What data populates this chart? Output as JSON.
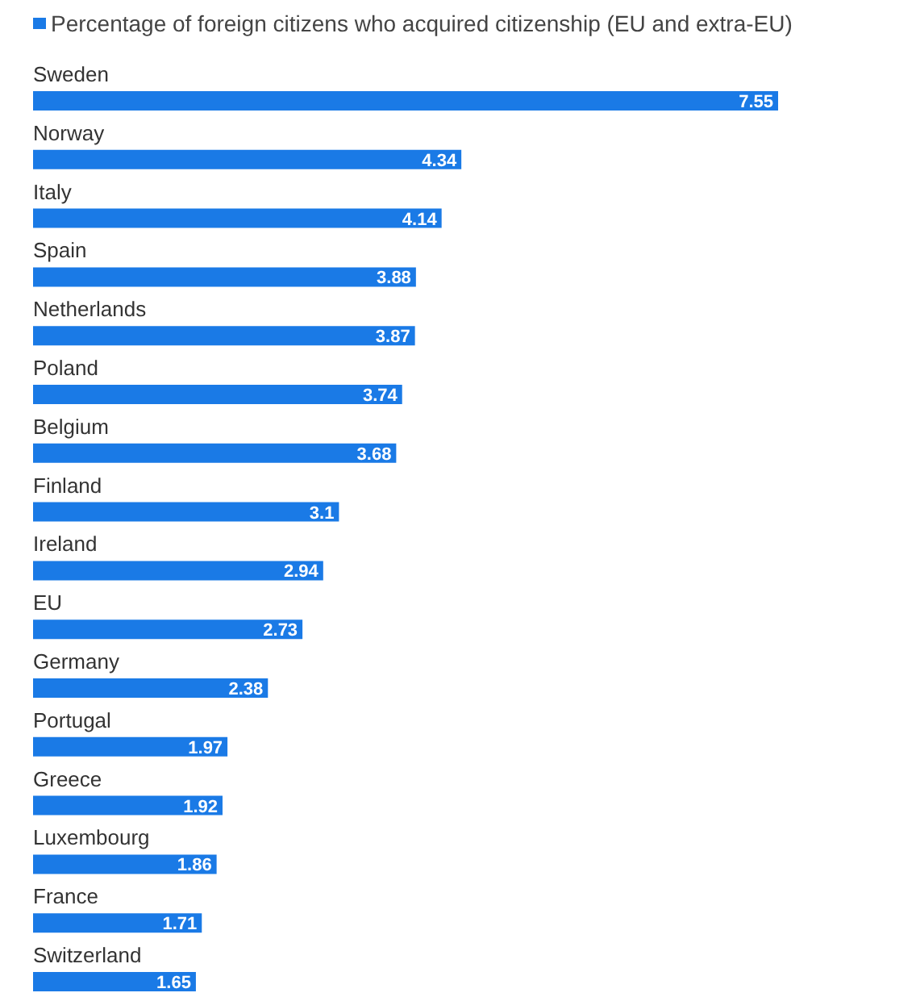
{
  "chart_data": {
    "type": "bar",
    "orientation": "horizontal",
    "data_labels": true,
    "legend": "top left",
    "categories": [
      "Sweden",
      "Norway",
      "Italy",
      "Spain",
      "Netherlands",
      "Poland",
      "Belgium",
      "Finland",
      "Ireland",
      "EU",
      "Germany",
      "Portugal",
      "Greece",
      "Luxembourg",
      "France",
      "Switzerland"
    ],
    "series": [
      {
        "name": "Percentage of foreign citizens who acquired citizenship (EU and extra-EU)",
        "color": "#1a7ae6",
        "values": [
          7.55,
          4.34,
          4.14,
          3.88,
          3.87,
          3.74,
          3.68,
          3.1,
          2.94,
          2.73,
          2.38,
          1.97,
          1.92,
          1.86,
          1.71,
          1.65
        ]
      }
    ]
  }
}
